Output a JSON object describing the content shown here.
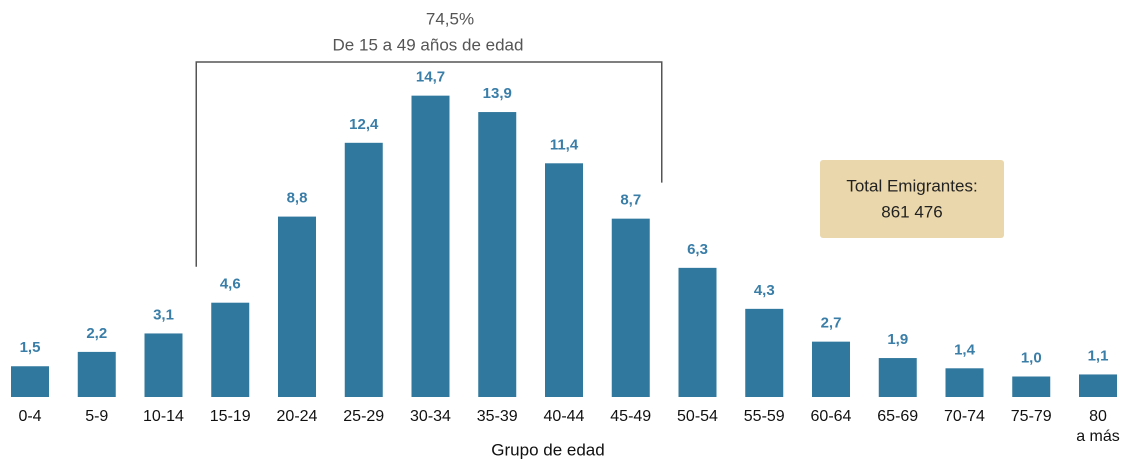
{
  "chart_data": {
    "type": "bar",
    "categories": [
      "0-4",
      "5-9",
      "10-14",
      "15-19",
      "20-24",
      "25-29",
      "30-34",
      "35-39",
      "40-44",
      "45-49",
      "50-54",
      "55-59",
      "60-64",
      "65-69",
      "70-74",
      "75-79",
      "80\na más"
    ],
    "values": [
      1.5,
      2.2,
      3.1,
      4.6,
      8.8,
      12.4,
      14.7,
      13.9,
      11.4,
      8.7,
      6.3,
      4.3,
      2.7,
      1.9,
      1.4,
      1.0,
      1.1
    ],
    "value_labels": [
      "1,5",
      "2,2",
      "3,1",
      "4,6",
      "8,8",
      "12,4",
      "14,7",
      "13,9",
      "11,4",
      "8,7",
      "6,3",
      "4,3",
      "2,7",
      "1,9",
      "1,4",
      "1,0",
      "1,1"
    ],
    "color": "#31789e",
    "label_color": "#3a7ea8",
    "ylim": [
      0,
      16
    ],
    "xlabel": "Grupo de edad",
    "bracket_value": "74,5%",
    "bracket_text": "De 15 a 49 años de edad",
    "total_label": "Total Emigrantes:",
    "total_value": "861 476"
  }
}
